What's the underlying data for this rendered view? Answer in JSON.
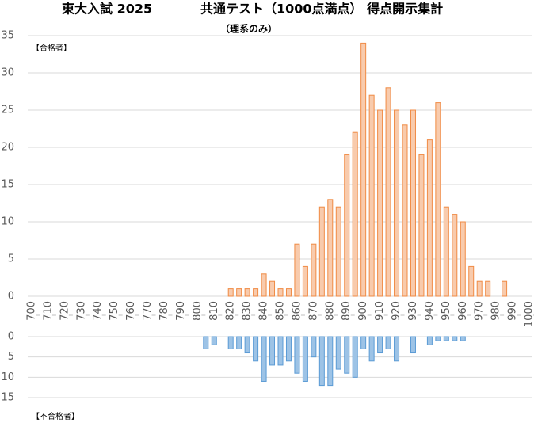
{
  "chart_data": [
    {
      "type": "histogram",
      "title": "東大入試 2025",
      "title2": "共通テスト（1000点満点） 得点開示集計",
      "subtitle": "（理系のみ）",
      "annotation": "【合格者】",
      "bins": [
        800,
        805,
        810,
        815,
        820,
        825,
        830,
        835,
        840,
        845,
        850,
        855,
        860,
        865,
        870,
        875,
        880,
        885,
        890,
        895,
        900,
        905,
        910,
        915,
        920,
        925,
        930,
        935,
        940,
        945,
        950,
        955,
        960,
        965,
        970,
        975,
        980,
        985,
        990
      ],
      "values": [
        0,
        0,
        0,
        0,
        1,
        1,
        1,
        1,
        3,
        2,
        1,
        1,
        7,
        4,
        7,
        12,
        13,
        12,
        19,
        22,
        34,
        27,
        25,
        28,
        25,
        23,
        25,
        19,
        21,
        26,
        12,
        11,
        10,
        4,
        2,
        2,
        0,
        2
      ],
      "color": "#f8cbad",
      "edgecolor": "#f08b45",
      "xlim": [
        700,
        1000
      ],
      "xticks": [
        700,
        710,
        720,
        730,
        740,
        750,
        760,
        770,
        780,
        790,
        800,
        810,
        820,
        830,
        840,
        850,
        860,
        870,
        880,
        890,
        900,
        910,
        920,
        930,
        940,
        950,
        960,
        970,
        980,
        990,
        1000
      ],
      "ylim": [
        0,
        35
      ],
      "yticks": [
        0,
        5,
        10,
        15,
        20,
        25,
        30,
        35
      ],
      "grid": true
    },
    {
      "type": "histogram",
      "annotation": "【不合格者】",
      "bins": [
        800,
        805,
        810,
        815,
        820,
        825,
        830,
        835,
        840,
        845,
        850,
        855,
        860,
        865,
        870,
        875,
        880,
        885,
        890,
        895,
        900,
        905,
        910,
        915,
        920,
        925,
        930,
        935,
        940,
        945,
        950,
        955,
        960,
        965,
        970,
        975,
        980,
        985,
        990
      ],
      "values": [
        0,
        3,
        2,
        0,
        3,
        3,
        4,
        6,
        11,
        7,
        7,
        6,
        9,
        11,
        5,
        12,
        12,
        8,
        9,
        10,
        3,
        6,
        4,
        3,
        6,
        0,
        4,
        0,
        2,
        1,
        1,
        1,
        1,
        0,
        0,
        0,
        0,
        0
      ],
      "color": "#9dc3e6",
      "edgecolor": "#5b9bd5",
      "xlim": [
        700,
        1000
      ],
      "inverted": true,
      "ylim": [
        0,
        15
      ],
      "yticks": [
        0,
        5,
        10,
        15
      ],
      "grid": true
    }
  ]
}
